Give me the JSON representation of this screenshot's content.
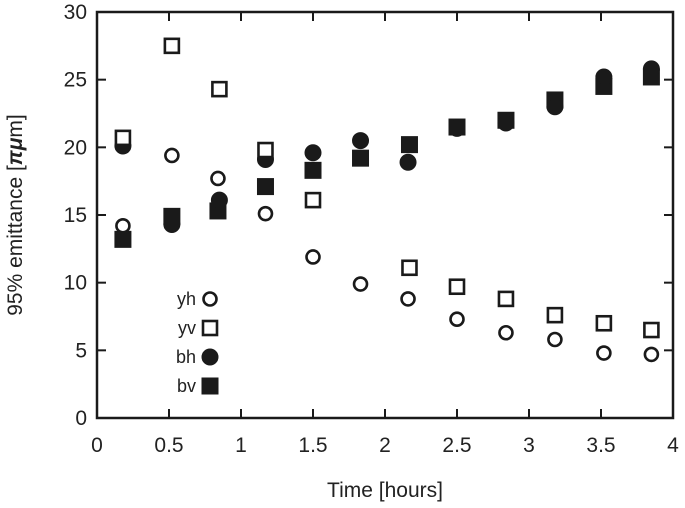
{
  "chart_data": {
    "type": "scatter",
    "xlabel": "Time [hours]",
    "ylabel_prefix": "95% emittance [",
    "ylabel_unit": "πμ",
    "ylabel_suffix": "m]",
    "xlim": [
      0,
      4
    ],
    "ylim": [
      0,
      30
    ],
    "xticks": [
      0,
      0.5,
      1,
      1.5,
      2,
      2.5,
      3,
      3.5,
      4
    ],
    "xtick_labels": [
      "0",
      "0.5",
      "1",
      "1.5",
      "2",
      "2.5",
      "3",
      "3.5",
      "4"
    ],
    "yticks": [
      0,
      5,
      10,
      15,
      20,
      25,
      30
    ],
    "ytick_labels": [
      "0",
      "5",
      "10",
      "15",
      "20",
      "25",
      "30"
    ],
    "grid": false,
    "legend_position": "lower-left",
    "series": [
      {
        "name": "yh",
        "marker": "circle-open",
        "color": "#1a1a1a",
        "points": [
          [
            0.18,
            14.2
          ],
          [
            0.52,
            19.4
          ],
          [
            0.84,
            17.7
          ],
          [
            1.17,
            15.1
          ],
          [
            1.5,
            11.9
          ],
          [
            1.83,
            9.9
          ],
          [
            2.16,
            8.8
          ],
          [
            2.5,
            7.3
          ],
          [
            2.84,
            6.3
          ],
          [
            3.18,
            5.8
          ],
          [
            3.52,
            4.8
          ],
          [
            3.85,
            4.7
          ]
        ]
      },
      {
        "name": "yv",
        "marker": "square-open",
        "color": "#1a1a1a",
        "points": [
          [
            0.18,
            20.7
          ],
          [
            0.52,
            27.5
          ],
          [
            0.85,
            24.3
          ],
          [
            1.17,
            19.8
          ],
          [
            1.5,
            16.1
          ],
          [
            2.17,
            11.1
          ],
          [
            2.5,
            9.7
          ],
          [
            2.84,
            8.8
          ],
          [
            3.18,
            7.6
          ],
          [
            3.52,
            7.0
          ],
          [
            3.85,
            6.5
          ]
        ]
      },
      {
        "name": "bh",
        "marker": "circle-filled",
        "color": "#1a1a1a",
        "points": [
          [
            0.18,
            20.1
          ],
          [
            0.52,
            14.3
          ],
          [
            0.85,
            16.1
          ],
          [
            1.17,
            19.1
          ],
          [
            1.5,
            19.6
          ],
          [
            1.83,
            20.5
          ],
          [
            2.16,
            18.9
          ],
          [
            2.5,
            21.4
          ],
          [
            2.84,
            21.8
          ],
          [
            3.18,
            23.0
          ],
          [
            3.52,
            25.2
          ],
          [
            3.85,
            25.8
          ]
        ]
      },
      {
        "name": "bv",
        "marker": "square-filled",
        "color": "#1a1a1a",
        "points": [
          [
            0.18,
            13.2
          ],
          [
            0.52,
            14.9
          ],
          [
            0.84,
            15.3
          ],
          [
            1.17,
            17.1
          ],
          [
            1.5,
            18.3
          ],
          [
            1.83,
            19.2
          ],
          [
            2.17,
            20.2
          ],
          [
            2.5,
            21.5
          ],
          [
            2.84,
            22.0
          ],
          [
            3.18,
            23.5
          ],
          [
            3.52,
            24.5
          ],
          [
            3.85,
            25.2
          ]
        ]
      }
    ]
  }
}
